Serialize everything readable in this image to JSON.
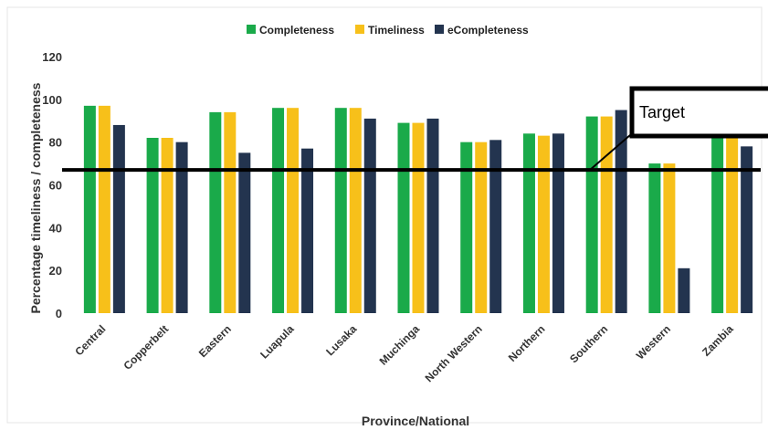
{
  "chart_data": {
    "type": "bar",
    "categories": [
      "Central",
      "Copperbelt",
      "Eastern",
      "Luapula",
      "Lusaka",
      "Muchinga",
      "North Western",
      "Northern",
      "Southern",
      "Western",
      "Zambia"
    ],
    "series": [
      {
        "name": "Completeness",
        "color": "#1aaa4a",
        "values": [
          97,
          82,
          94,
          96,
          96,
          89,
          80,
          84,
          92,
          70,
          89
        ]
      },
      {
        "name": "Timeliness",
        "color": "#f7c01a",
        "values": [
          97,
          82,
          94,
          96,
          96,
          89,
          80,
          83,
          92,
          70,
          89
        ]
      },
      {
        "name": "eCompleteness",
        "color": "#23344f",
        "values": [
          88,
          80,
          75,
          77,
          91,
          91,
          81,
          84,
          95,
          21,
          78
        ]
      }
    ],
    "ylim": [
      0,
      120
    ],
    "yticks": [
      0,
      20,
      40,
      60,
      80,
      100,
      120
    ],
    "xlabel": "Province/National",
    "ylabel": "Percentage timeliness / completeness",
    "legend_position": "top-center",
    "grid": false,
    "target_line": {
      "label": "Target",
      "value": 67
    }
  }
}
